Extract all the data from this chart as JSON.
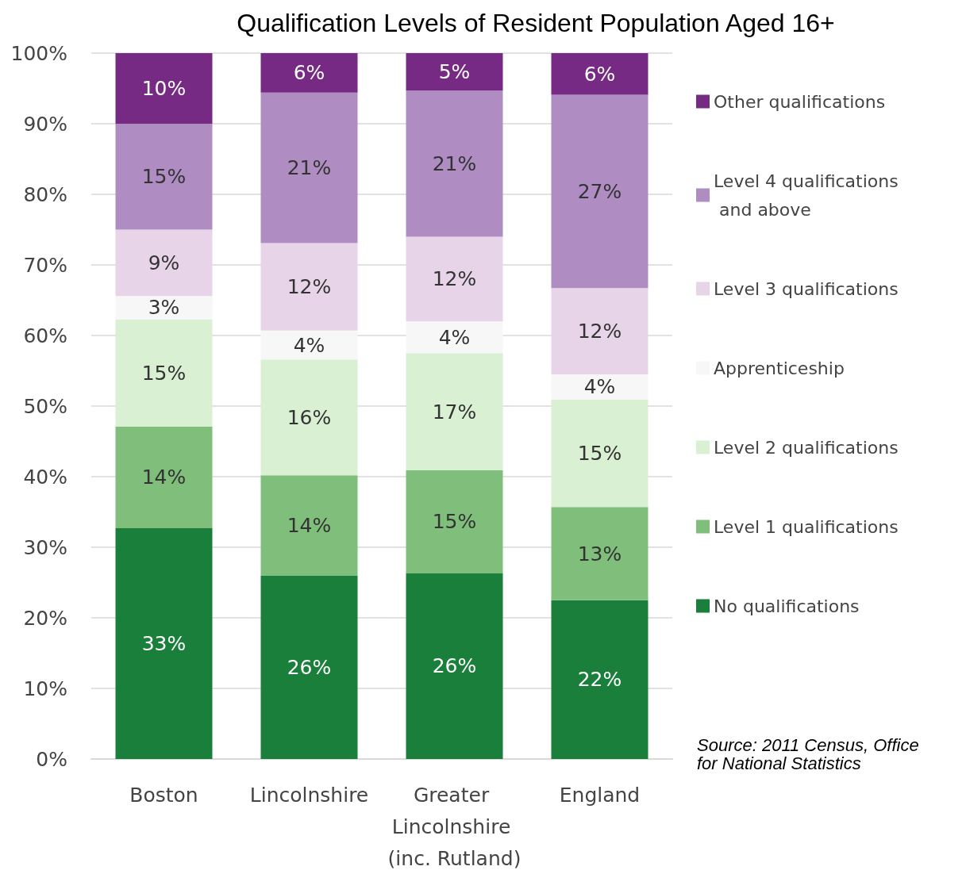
{
  "chart_data": {
    "type": "bar",
    "stacked": true,
    "title": "Qualification Levels of Resident Population Aged 16+",
    "categories": [
      "Boston",
      "Lincolnshire",
      "Greater Lincolnshire (inc. Rutland)",
      "England"
    ],
    "series": [
      {
        "name": "No qualifications",
        "color": "#1a7f3a",
        "values": [
          32.7,
          26.0,
          26.3,
          22.5
        ],
        "value_labels": [
          "33%",
          "26%",
          "26%",
          "22%"
        ]
      },
      {
        "name": "Level 1 qualifications",
        "color": "#7fbf7b",
        "values": [
          14.4,
          14.2,
          14.6,
          13.2
        ],
        "value_labels": [
          "14%",
          "14%",
          "15%",
          "13%"
        ]
      },
      {
        "name": "Level 2 qualifications",
        "color": "#d9f0d3",
        "values": [
          15.2,
          16.4,
          16.6,
          15.2
        ],
        "value_labels": [
          "15%",
          "16%",
          "17%",
          "15%"
        ]
      },
      {
        "name": "Apprenticeship",
        "color": "#f7f7f7",
        "values": [
          3.3,
          4.1,
          4.5,
          3.6
        ],
        "value_labels": [
          "3%",
          "4%",
          "4%",
          "4%"
        ]
      },
      {
        "name": "Level 3 qualifications",
        "color": "#e7d4e8",
        "values": [
          9.4,
          12.4,
          12.0,
          12.2
        ],
        "value_labels": [
          "9%",
          "12%",
          "12%",
          "12%"
        ]
      },
      {
        "name": "Level 4 qualifications and above",
        "color": "#af8dc3",
        "values": [
          15.0,
          21.3,
          20.7,
          27.4
        ],
        "value_labels": [
          "15%",
          "21%",
          "21%",
          "27%"
        ]
      },
      {
        "name": "Other qualifications",
        "color": "#762a83",
        "values": [
          10.0,
          5.6,
          5.3,
          5.9
        ],
        "value_labels": [
          "10%",
          "6%",
          "5%",
          "6%"
        ]
      }
    ],
    "ylim": [
      0,
      100
    ],
    "yticks": [
      {
        "value": 0,
        "label": "0%"
      },
      {
        "value": 10,
        "label": "10%"
      },
      {
        "value": 20,
        "label": "20%"
      },
      {
        "value": 30,
        "label": "30%"
      },
      {
        "value": 40,
        "label": "40%"
      },
      {
        "value": 50,
        "label": "50%"
      },
      {
        "value": 60,
        "label": "60%"
      },
      {
        "value": 70,
        "label": "70%"
      },
      {
        "value": 80,
        "label": "80%"
      },
      {
        "value": 90,
        "label": "90%"
      },
      {
        "value": 100,
        "label": "100%"
      }
    ],
    "grid": "y",
    "legend": "right",
    "annotations": [
      "Source: 2011 Census, Office for National Statistics"
    ]
  }
}
